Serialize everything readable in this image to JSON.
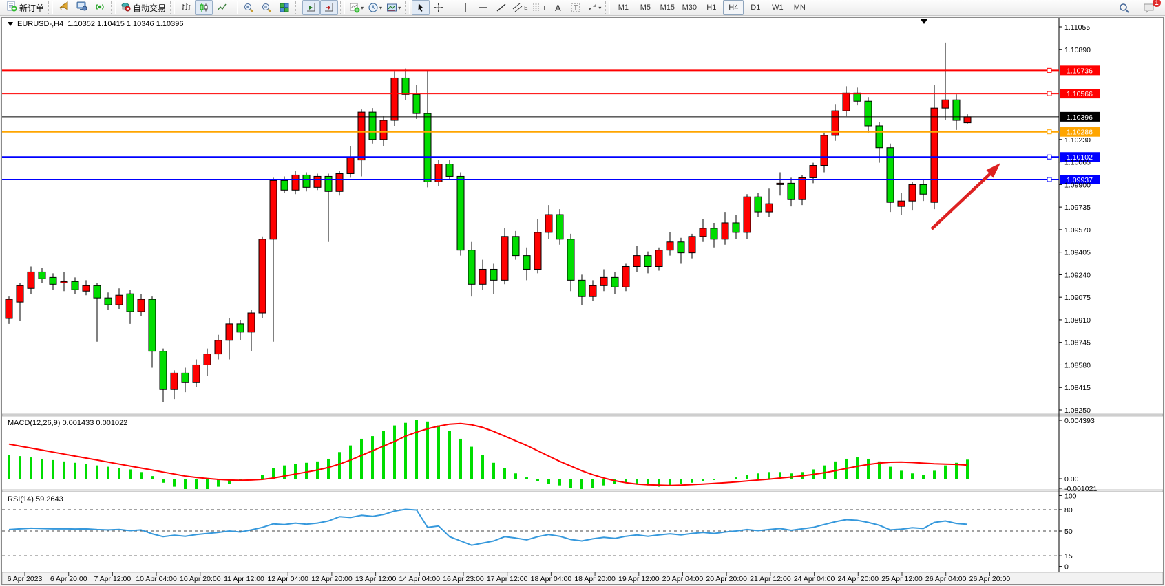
{
  "toolbar": {
    "new_order": "新订单",
    "autotrading": "自动交易",
    "timeframes": [
      "M1",
      "M5",
      "M15",
      "M30",
      "H1",
      "H4",
      "D1",
      "W1",
      "MN"
    ],
    "active_timeframe": "H4",
    "tool_glyphs": {
      "text": "A",
      "textbox": "T",
      "channel": "E",
      "fibo": "F"
    },
    "notification_count": "1"
  },
  "chart_header": {
    "symbol": "EURUSD-,H4",
    "ohlc": "1.10352 1.10415 1.10346 1.10396"
  },
  "chart_data": {
    "type": "candlestick",
    "symbol": "EURUSD-",
    "timeframe": "H4",
    "bull_color": "#ff0000",
    "bear_color": "#00dd00",
    "price_axis": {
      "max": 1.11055,
      "min": 1.0825,
      "plain_ticks": [
        1.11055,
        1.1089,
        1.1023,
        1.10065,
        1.099,
        1.09735,
        1.0957,
        1.09405,
        1.0924,
        1.09075,
        1.0891,
        1.08745,
        1.0858,
        1.08415,
        1.0825
      ]
    },
    "hlines": [
      {
        "price": 1.10736,
        "label": "1.10736",
        "color": "#ff0000",
        "width": 2
      },
      {
        "price": 1.10566,
        "label": "1.10566",
        "color": "#ff0000",
        "width": 2
      },
      {
        "price": 1.10396,
        "label": "1.10396",
        "color": "#000000",
        "width": 1,
        "current": true
      },
      {
        "price": 1.10286,
        "label": "1.10286",
        "color": "#ffa500",
        "width": 2
      },
      {
        "price": 1.10102,
        "label": "1.10102",
        "color": "#0000ff",
        "width": 2
      },
      {
        "price": 1.09937,
        "label": "1.09937",
        "color": "#0000ff",
        "width": 2
      }
    ],
    "candles": [
      [
        1.0892,
        1.0908,
        1.0888,
        1.0906
      ],
      [
        1.0904,
        1.0918,
        1.089,
        1.0916
      ],
      [
        1.0914,
        1.093,
        1.091,
        1.0926
      ],
      [
        1.0926,
        1.0929,
        1.0918,
        1.0921
      ],
      [
        1.0922,
        1.0925,
        1.0913,
        1.0917
      ],
      [
        1.0918,
        1.0926,
        1.0912,
        1.0919
      ],
      [
        1.0919,
        1.0922,
        1.091,
        1.0913
      ],
      [
        1.0912,
        1.092,
        1.0909,
        1.0916
      ],
      [
        1.0916,
        1.0918,
        1.0875,
        1.0907
      ],
      [
        1.0907,
        1.0911,
        1.0898,
        1.0902
      ],
      [
        1.0902,
        1.0914,
        1.0899,
        1.0909
      ],
      [
        1.091,
        1.0913,
        1.0888,
        1.0897
      ],
      [
        1.0897,
        1.091,
        1.0894,
        1.0906
      ],
      [
        1.0906,
        1.0908,
        1.0856,
        1.0868
      ],
      [
        1.0868,
        1.087,
        1.0831,
        1.084
      ],
      [
        1.084,
        1.0854,
        1.0833,
        1.0852
      ],
      [
        1.0852,
        1.0856,
        1.0838,
        1.0845
      ],
      [
        1.0845,
        1.0862,
        1.0842,
        1.0858
      ],
      [
        1.0858,
        1.087,
        1.085,
        1.0866
      ],
      [
        1.0866,
        1.088,
        1.0862,
        1.0876
      ],
      [
        1.0876,
        1.0892,
        1.0862,
        1.0888
      ],
      [
        1.0888,
        1.0891,
        1.0876,
        1.0882
      ],
      [
        1.0882,
        1.0898,
        1.0868,
        1.0896
      ],
      [
        1.0896,
        1.0952,
        1.0892,
        1.095
      ],
      [
        1.095,
        1.0995,
        1.0875,
        1.0993
      ],
      [
        1.0993,
        1.0996,
        1.0984,
        1.0986
      ],
      [
        1.0986,
        1.1,
        1.0983,
        1.0997
      ],
      [
        1.0997,
        1.0999,
        1.0985,
        1.0988
      ],
      [
        1.0988,
        1.0998,
        1.0986,
        1.0996
      ],
      [
        1.0996,
        1.0998,
        1.0948,
        1.0985
      ],
      [
        1.0985,
        1.1,
        1.0982,
        1.0998
      ],
      [
        1.0998,
        1.1018,
        1.0995,
        1.101
      ],
      [
        1.1008,
        1.1045,
        1.0996,
        1.1043
      ],
      [
        1.1043,
        1.1046,
        1.102,
        1.1023
      ],
      [
        1.1023,
        1.104,
        1.1018,
        1.1037
      ],
      [
        1.1037,
        1.1073,
        1.1033,
        1.1068
      ],
      [
        1.1068,
        1.1075,
        1.1052,
        1.1056
      ],
      [
        1.1056,
        1.1063,
        1.1038,
        1.1042
      ],
      [
        1.1042,
        1.1074,
        1.0988,
        1.0992
      ],
      [
        1.0992,
        1.1008,
        1.0989,
        1.1005
      ],
      [
        1.1005,
        1.1008,
        1.0994,
        1.0996
      ],
      [
        1.0996,
        1.0999,
        1.0938,
        1.0942
      ],
      [
        1.0942,
        1.0948,
        1.0908,
        1.0917
      ],
      [
        1.0917,
        1.0935,
        1.0913,
        1.0928
      ],
      [
        1.0928,
        1.0932,
        1.091,
        1.092
      ],
      [
        1.092,
        1.0958,
        1.0917,
        1.0952
      ],
      [
        1.0952,
        1.0956,
        1.0935,
        1.0938
      ],
      [
        1.0938,
        1.0944,
        1.092,
        1.0928
      ],
      [
        1.0928,
        1.0965,
        1.0925,
        1.0955
      ],
      [
        1.0955,
        1.0975,
        1.095,
        1.0968
      ],
      [
        1.0968,
        1.0972,
        1.0946,
        1.095
      ],
      [
        1.095,
        1.0954,
        1.0912,
        1.092
      ],
      [
        1.092,
        1.0924,
        1.0902,
        1.0908
      ],
      [
        1.0908,
        1.092,
        1.0905,
        1.0916
      ],
      [
        1.0916,
        1.0928,
        1.0912,
        1.0922
      ],
      [
        1.0922,
        1.0926,
        1.091,
        1.0915
      ],
      [
        1.0915,
        1.0932,
        1.0912,
        1.093
      ],
      [
        1.093,
        1.0945,
        1.0926,
        1.0938
      ],
      [
        1.0938,
        1.0941,
        1.0925,
        1.093
      ],
      [
        1.093,
        1.0944,
        1.0927,
        1.0942
      ],
      [
        1.0942,
        1.0955,
        1.0938,
        1.0948
      ],
      [
        1.0948,
        1.0951,
        1.0932,
        1.094
      ],
      [
        1.094,
        1.0954,
        1.0936,
        1.0952
      ],
      [
        1.0952,
        1.0965,
        1.0948,
        1.0958
      ],
      [
        1.0958,
        1.0962,
        1.0944,
        1.095
      ],
      [
        1.095,
        1.097,
        1.0946,
        1.0962
      ],
      [
        1.0962,
        1.0968,
        1.095,
        1.0955
      ],
      [
        1.0955,
        1.0983,
        1.095,
        1.0981
      ],
      [
        1.0981,
        1.0984,
        1.0966,
        1.097
      ],
      [
        1.097,
        1.0987,
        1.0966,
        1.0976
      ],
      [
        1.099,
        1.0999,
        1.0982,
        1.0991
      ],
      [
        1.0991,
        1.0995,
        1.0974,
        1.0979
      ],
      [
        1.0979,
        1.0997,
        1.0975,
        1.0995
      ],
      [
        1.0995,
        1.1006,
        1.0991,
        1.1004
      ],
      [
        1.1004,
        1.1028,
        1.0999,
        1.1026
      ],
      [
        1.1026,
        1.1049,
        1.1022,
        1.1044
      ],
      [
        1.1044,
        1.1062,
        1.104,
        1.1057
      ],
      [
        1.1057,
        1.1061,
        1.1048,
        1.1051
      ],
      [
        1.1051,
        1.1054,
        1.1028,
        1.1033
      ],
      [
        1.1033,
        1.1036,
        1.1006,
        1.1017
      ],
      [
        1.1017,
        1.102,
        1.097,
        1.0977
      ],
      [
        1.0974,
        1.0984,
        1.0968,
        1.0978
      ],
      [
        1.0978,
        1.0992,
        1.0971,
        1.099
      ],
      [
        1.099,
        1.0994,
        1.0978,
        1.0983
      ],
      [
        1.0977,
        1.1063,
        1.0972,
        1.1046
      ],
      [
        1.1046,
        1.1094,
        1.1037,
        1.1052
      ],
      [
        1.1052,
        1.1056,
        1.103,
        1.1037
      ],
      [
        1.10352,
        1.10415,
        1.10346,
        1.10396
      ]
    ],
    "macd": {
      "name": "MACD(12,26,9)",
      "values_text": "0.001433 0.001022",
      "hist_value": 0.001433,
      "signal_value": 0.001022,
      "axis": [
        "0.004393",
        "0.00",
        "-0.001021"
      ],
      "hist_e4": [
        18,
        17,
        16,
        15,
        14,
        13,
        12,
        11,
        10,
        9,
        8,
        7,
        5,
        2,
        -3,
        -6,
        -8,
        -10,
        -8,
        -6,
        -4,
        -2,
        0,
        3,
        8,
        10,
        11,
        12,
        13,
        15,
        20,
        25,
        30,
        32,
        36,
        40,
        42,
        44,
        43,
        40,
        36,
        30,
        24,
        18,
        12,
        8,
        4,
        1,
        -2,
        -4,
        -5,
        -7,
        -8,
        -7,
        -5,
        -4,
        -3,
        -4,
        -5,
        -6,
        -5,
        -4,
        -3,
        -2,
        -1,
        0,
        1,
        3,
        4,
        5,
        5,
        4,
        5,
        7,
        10,
        13,
        15,
        16,
        15,
        13,
        9,
        6,
        4,
        3,
        6,
        10,
        12,
        14.33
      ],
      "signal_e4": [
        26,
        24.5,
        23,
        21.5,
        20,
        18.5,
        17,
        15.5,
        14,
        12.5,
        11,
        9.5,
        8,
        6.5,
        5,
        3.5,
        2,
        1,
        0.2,
        -0.5,
        -1,
        -1.2,
        -1,
        -0.5,
        0.5,
        2,
        3.5,
        5,
        6.5,
        8.5,
        11,
        14,
        17.5,
        21,
        24.5,
        28,
        32,
        35,
        37.5,
        39.5,
        41,
        41.5,
        40.5,
        38.5,
        35.5,
        32,
        28.5,
        25,
        21,
        17,
        13,
        9.5,
        6,
        3,
        0.5,
        -1.5,
        -3,
        -4,
        -4.5,
        -4.8,
        -5,
        -4.8,
        -4.4,
        -4,
        -3.5,
        -3,
        -2.4,
        -1.7,
        -1,
        -0.3,
        0.5,
        1.3,
        2.2,
        3.2,
        4.5,
        6,
        7.7,
        9.3,
        10.7,
        11.8,
        12.4,
        12.5,
        12.2,
        11.7,
        11.2,
        11,
        10.8,
        10.22
      ]
    },
    "rsi": {
      "name": "RSI(14)",
      "value_text": "59.2643",
      "value": 59.2643,
      "levels": [
        80,
        50,
        15
      ],
      "axis": [
        "100",
        "80",
        "50",
        "15",
        "0"
      ],
      "values": [
        52,
        53,
        54,
        53.5,
        53,
        53.2,
        52.8,
        53,
        52,
        51.5,
        52.2,
        50.5,
        51.5,
        46,
        42,
        44,
        42.5,
        45,
        46.5,
        48,
        50,
        48.5,
        51.5,
        55,
        60,
        59,
        61,
        59.5,
        61,
        64,
        70,
        69,
        72,
        70.5,
        73,
        78,
        80.5,
        79.5,
        55,
        57,
        42,
        36,
        30,
        33,
        36,
        42,
        40,
        37.5,
        42,
        45,
        42.5,
        38,
        36,
        39,
        41,
        39.5,
        42.5,
        44.5,
        42.5,
        44.5,
        46,
        44.5,
        46.5,
        48,
        46.5,
        48.5,
        50,
        52,
        50.5,
        52,
        53.5,
        51,
        53,
        55,
        59,
        63,
        66,
        65,
        62,
        58,
        51.5,
        52.5,
        54.5,
        53.5,
        62,
        64,
        60.5,
        59.26
      ]
    },
    "dates": [
      "6 Apr 2023",
      "6 Apr 20:00",
      "7 Apr 12:00",
      "10 Apr 04:00",
      "10 Apr 20:00",
      "11 Apr 12:00",
      "12 Apr 04:00",
      "12 Apr 20:00",
      "13 Apr 12:00",
      "14 Apr 04:00",
      "16 Apr 23:00",
      "17 Apr 12:00",
      "18 Apr 04:00",
      "18 Apr 20:00",
      "19 Apr 12:00",
      "20 Apr 04:00",
      "20 Apr 20:00",
      "21 Apr 12:00",
      "24 Apr 04:00",
      "24 Apr 20:00",
      "25 Apr 12:00",
      "26 Apr 04:00",
      "26 Apr 20:00"
    ],
    "annotation_arrow": {
      "color": "#dd2222",
      "direction": "up-right"
    }
  }
}
